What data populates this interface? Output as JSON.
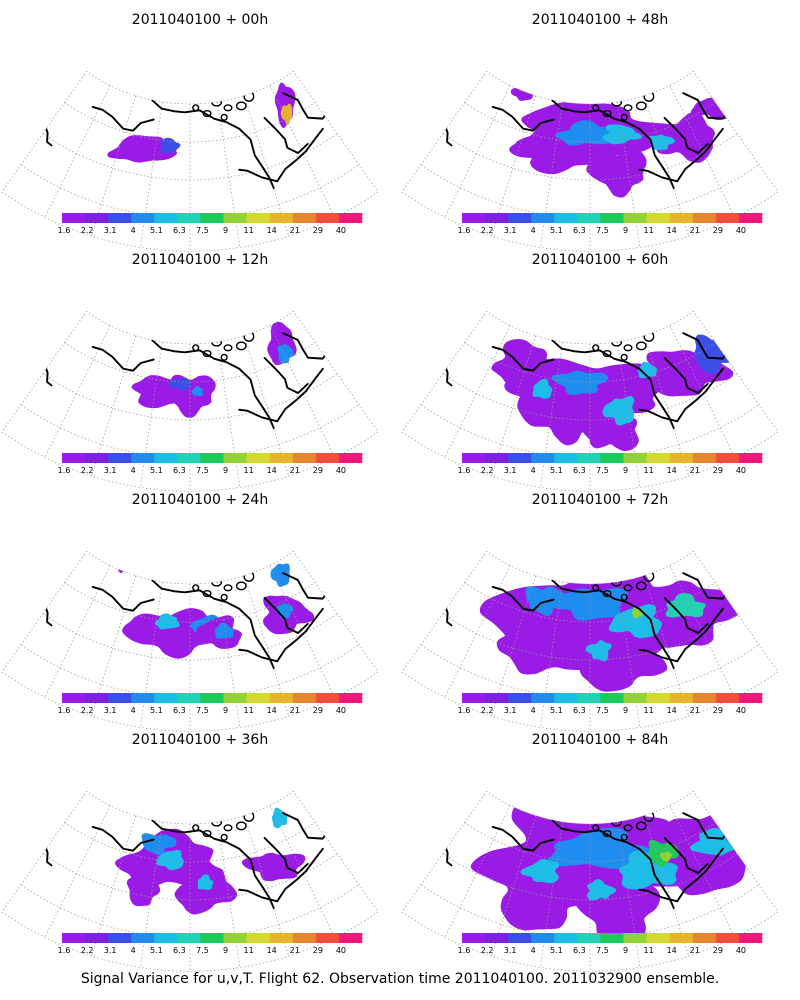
{
  "caption": "Signal Variance for u,v,T. Flight 62. Observation time 2011040100. 2011032900 ensemble.",
  "colorbar": {
    "labels": [
      "1.6",
      "2.2",
      "3.1",
      "4",
      "5.1",
      "6.3",
      "7.5",
      "9",
      "11",
      "14",
      "21",
      "29",
      "40"
    ],
    "colors": [
      "#9a1be6",
      "#7d22d9",
      "#3c4ee8",
      "#1f8df0",
      "#1dbde8",
      "#22d1b4",
      "#1ec85a",
      "#8ed236",
      "#d2d836",
      "#e6b232",
      "#e8862e",
      "#f0503a",
      "#f0187a"
    ]
  },
  "chart_data": [
    {
      "type": "heatmap",
      "title": "2011040100 + 00h",
      "lead_hours": 0
    },
    {
      "type": "heatmap",
      "title": "2011040100 + 48h",
      "lead_hours": 48
    },
    {
      "type": "heatmap",
      "title": "2011040100 + 12h",
      "lead_hours": 12
    },
    {
      "type": "heatmap",
      "title": "2011040100 + 60h",
      "lead_hours": 60
    },
    {
      "type": "heatmap",
      "title": "2011040100 + 24h",
      "lead_hours": 24
    },
    {
      "type": "heatmap",
      "title": "2011040100 + 72h",
      "lead_hours": 72
    },
    {
      "type": "heatmap",
      "title": "2011040100 + 36h",
      "lead_hours": 36
    },
    {
      "type": "heatmap",
      "title": "2011040100 + 84h",
      "lead_hours": 84
    }
  ]
}
